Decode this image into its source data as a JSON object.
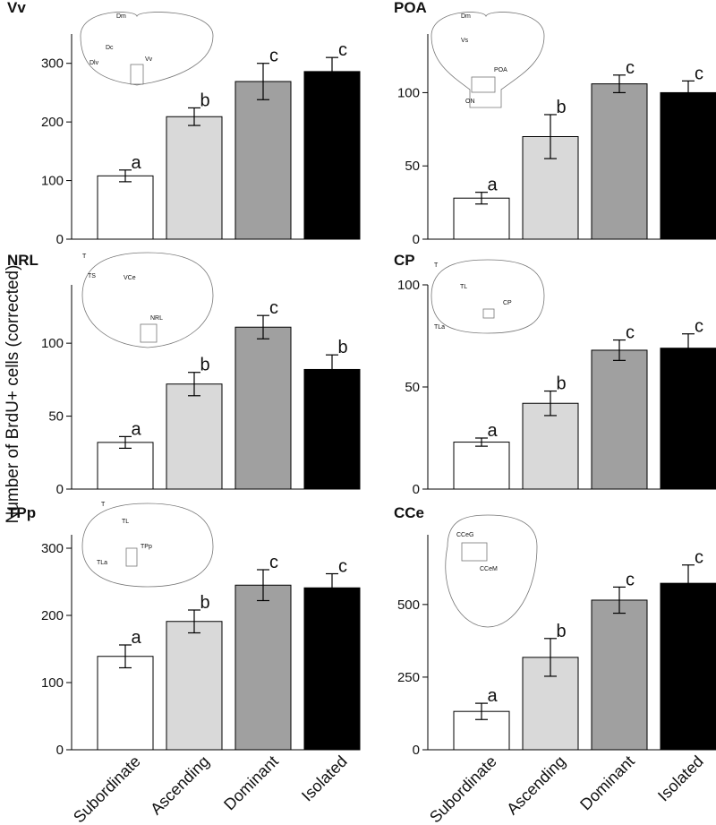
{
  "y_label": "Number of BrdU+ cells (corrected)",
  "categories": [
    "Subordinate",
    "Ascending",
    "Dominant",
    "Isolated"
  ],
  "colors": [
    "#ffffff",
    "#d9d9d9",
    "#a0a0a0",
    "#000000"
  ],
  "chart_data": [
    {
      "type": "bar",
      "title": "Vv",
      "ylim": [
        0,
        350
      ],
      "yticks": [
        0,
        100,
        200,
        300
      ],
      "values": [
        108,
        209,
        269,
        286
      ],
      "errors": [
        10,
        15,
        31,
        24
      ],
      "annotations": [
        "a",
        "b",
        "c",
        "c"
      ],
      "inset_labels": [
        "Dm",
        "Dc",
        "Dlv",
        "Vv"
      ]
    },
    {
      "type": "bar",
      "title": "POA",
      "ylim": [
        0,
        140
      ],
      "yticks": [
        0,
        50,
        100
      ],
      "values": [
        28,
        70,
        106,
        100
      ],
      "errors": [
        4,
        15,
        6,
        8
      ],
      "annotations": [
        "a",
        "b",
        "c",
        "c"
      ],
      "inset_labels": [
        "Dm",
        "Vs",
        "POA",
        "ON"
      ]
    },
    {
      "type": "bar",
      "title": "NRL",
      "ylim": [
        0,
        140
      ],
      "yticks": [
        0,
        50,
        100
      ],
      "values": [
        32,
        72,
        111,
        82
      ],
      "errors": [
        4,
        8,
        8,
        10
      ],
      "annotations": [
        "a",
        "b",
        "c",
        "b"
      ],
      "inset_labels": [
        "T",
        "TS",
        "VCe",
        "NRL"
      ]
    },
    {
      "type": "bar",
      "title": "CP",
      "ylim": [
        0,
        100
      ],
      "yticks": [
        0,
        50,
        100
      ],
      "values": [
        23,
        42,
        68,
        69
      ],
      "errors": [
        2,
        6,
        5,
        7
      ],
      "annotations": [
        "a",
        "b",
        "c",
        "c"
      ],
      "inset_labels": [
        "T",
        "TL",
        "CP",
        "TLa"
      ]
    },
    {
      "type": "bar",
      "title": "TPp",
      "ylim": [
        0,
        320
      ],
      "yticks": [
        0,
        100,
        200,
        300
      ],
      "values": [
        139,
        191,
        245,
        241
      ],
      "errors": [
        17,
        17,
        23,
        21
      ],
      "annotations": [
        "a",
        "b",
        "c",
        "c"
      ],
      "inset_labels": [
        "T",
        "TL",
        "TPp",
        "TLa"
      ]
    },
    {
      "type": "bar",
      "title": "CCe",
      "ylim": [
        0,
        740
      ],
      "yticks": [
        0,
        250,
        500
      ],
      "values": [
        132,
        318,
        515,
        573
      ],
      "errors": [
        28,
        65,
        45,
        63
      ],
      "annotations": [
        "a",
        "b",
        "c",
        "c"
      ],
      "inset_labels": [
        "CCeG",
        "CCeM"
      ]
    }
  ]
}
